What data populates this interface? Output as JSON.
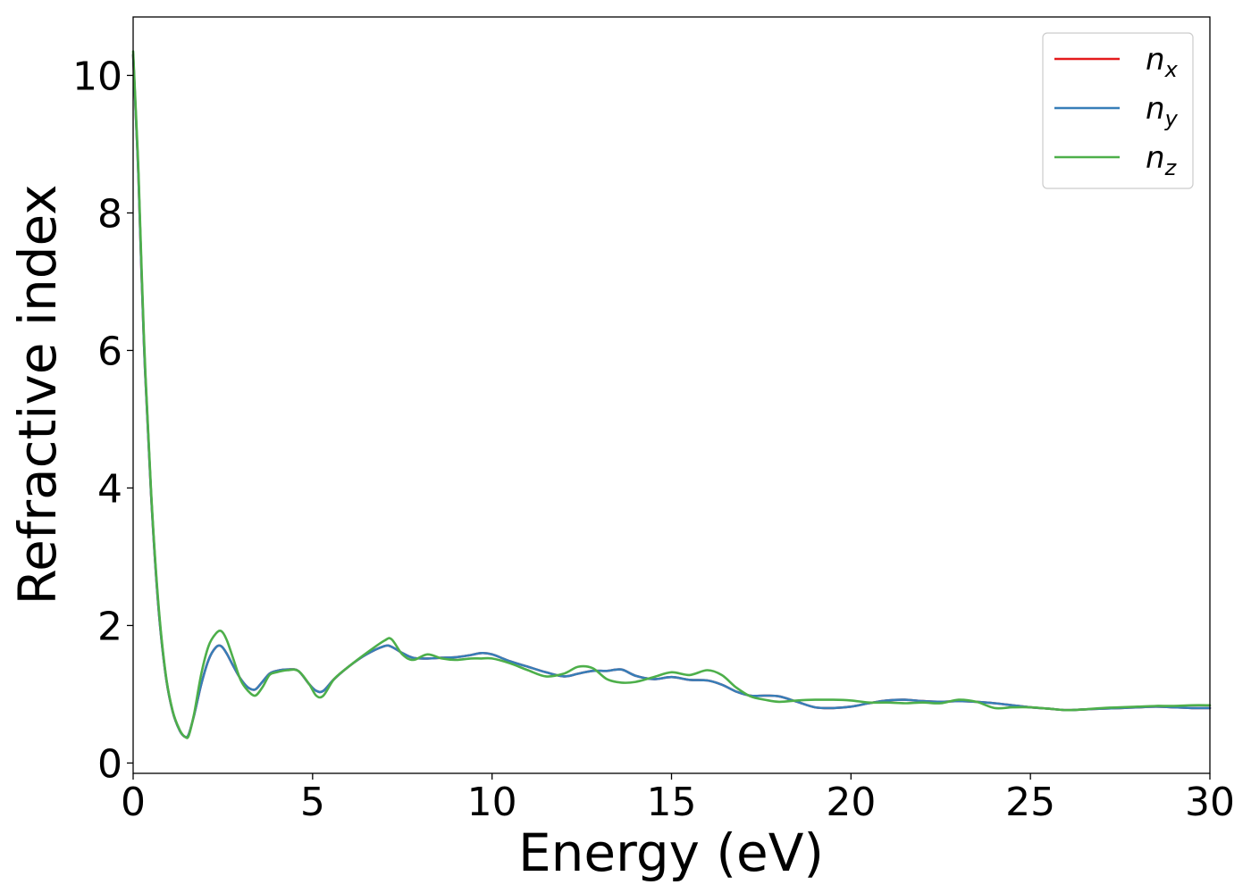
{
  "chart_data": {
    "type": "line",
    "title": "",
    "xlabel": "Energy (eV)",
    "ylabel": "Refractive index",
    "xlim": [
      0,
      30
    ],
    "ylim": [
      -0.15,
      10.85
    ],
    "x_ticks": [
      0,
      5,
      10,
      15,
      20,
      25,
      30
    ],
    "x_tick_labels": [
      "0",
      "5",
      "10",
      "15",
      "20",
      "25",
      "30"
    ],
    "y_ticks": [
      0,
      2,
      4,
      6,
      8,
      10
    ],
    "y_tick_labels": [
      "0",
      "2",
      "4",
      "6",
      "8",
      "10"
    ],
    "grid": false,
    "legend_position": "top-right",
    "series": [
      {
        "name": "n_x",
        "legend_base": "n",
        "legend_sub": "x",
        "color": "#e41a1c",
        "x": [
          0,
          0.15,
          0.3,
          0.5,
          0.7,
          0.9,
          1.1,
          1.3,
          1.45,
          1.55,
          1.7,
          1.9,
          2.1,
          2.3,
          2.45,
          2.6,
          2.8,
          3.0,
          3.2,
          3.4,
          3.6,
          3.8,
          4.0,
          4.3,
          4.6,
          4.9,
          5.1,
          5.3,
          5.6,
          6.0,
          6.5,
          7.0,
          7.2,
          7.5,
          7.8,
          8.2,
          8.6,
          9.0,
          9.4,
          9.7,
          10.0,
          10.5,
          11.0,
          11.5,
          12.0,
          12.4,
          12.8,
          13.2,
          13.6,
          14.0,
          14.5,
          15.0,
          15.5,
          16.0,
          16.4,
          16.8,
          17.2,
          17.6,
          18.0,
          18.5,
          19.0,
          19.5,
          20.0,
          20.5,
          21.0,
          21.5,
          22.0,
          22.5,
          23.0,
          23.5,
          24.0,
          24.5,
          25.0,
          25.5,
          26.0,
          26.5,
          27.0,
          27.5,
          28.0,
          28.5,
          29.0,
          29.5,
          30.0
        ],
        "y": [
          10.3,
          8.5,
          6.1,
          3.9,
          2.3,
          1.3,
          0.75,
          0.47,
          0.38,
          0.42,
          0.7,
          1.15,
          1.5,
          1.68,
          1.7,
          1.6,
          1.4,
          1.22,
          1.1,
          1.07,
          1.18,
          1.3,
          1.34,
          1.36,
          1.34,
          1.15,
          1.05,
          1.05,
          1.22,
          1.4,
          1.58,
          1.7,
          1.69,
          1.6,
          1.53,
          1.52,
          1.53,
          1.54,
          1.57,
          1.6,
          1.58,
          1.48,
          1.4,
          1.32,
          1.26,
          1.3,
          1.34,
          1.34,
          1.36,
          1.27,
          1.22,
          1.25,
          1.21,
          1.2,
          1.14,
          1.04,
          0.98,
          0.98,
          0.97,
          0.89,
          0.81,
          0.8,
          0.82,
          0.87,
          0.91,
          0.92,
          0.9,
          0.89,
          0.9,
          0.89,
          0.87,
          0.84,
          0.81,
          0.79,
          0.77,
          0.78,
          0.79,
          0.8,
          0.81,
          0.82,
          0.81,
          0.8,
          0.8
        ]
      },
      {
        "name": "n_y",
        "legend_base": "n",
        "legend_sub": "y",
        "color": "#377eb8",
        "x": [
          0,
          0.15,
          0.3,
          0.5,
          0.7,
          0.9,
          1.1,
          1.3,
          1.45,
          1.55,
          1.7,
          1.9,
          2.1,
          2.3,
          2.45,
          2.6,
          2.8,
          3.0,
          3.2,
          3.4,
          3.6,
          3.8,
          4.0,
          4.3,
          4.6,
          4.9,
          5.1,
          5.3,
          5.6,
          6.0,
          6.5,
          7.0,
          7.2,
          7.5,
          7.8,
          8.2,
          8.6,
          9.0,
          9.4,
          9.7,
          10.0,
          10.5,
          11.0,
          11.5,
          12.0,
          12.4,
          12.8,
          13.2,
          13.6,
          14.0,
          14.5,
          15.0,
          15.5,
          16.0,
          16.4,
          16.8,
          17.2,
          17.6,
          18.0,
          18.5,
          19.0,
          19.5,
          20.0,
          20.5,
          21.0,
          21.5,
          22.0,
          22.5,
          23.0,
          23.5,
          24.0,
          24.5,
          25.0,
          25.5,
          26.0,
          26.5,
          27.0,
          27.5,
          28.0,
          28.5,
          29.0,
          29.5,
          30.0
        ],
        "y": [
          10.3,
          8.5,
          6.1,
          3.9,
          2.3,
          1.3,
          0.75,
          0.47,
          0.38,
          0.42,
          0.7,
          1.15,
          1.5,
          1.68,
          1.7,
          1.6,
          1.4,
          1.22,
          1.1,
          1.07,
          1.18,
          1.3,
          1.34,
          1.36,
          1.34,
          1.15,
          1.05,
          1.05,
          1.22,
          1.4,
          1.58,
          1.7,
          1.69,
          1.6,
          1.53,
          1.52,
          1.53,
          1.54,
          1.57,
          1.6,
          1.58,
          1.48,
          1.4,
          1.32,
          1.26,
          1.3,
          1.34,
          1.34,
          1.36,
          1.27,
          1.22,
          1.25,
          1.21,
          1.2,
          1.14,
          1.04,
          0.98,
          0.98,
          0.97,
          0.89,
          0.81,
          0.8,
          0.82,
          0.87,
          0.91,
          0.92,
          0.9,
          0.89,
          0.9,
          0.89,
          0.87,
          0.84,
          0.81,
          0.79,
          0.77,
          0.78,
          0.79,
          0.8,
          0.81,
          0.82,
          0.81,
          0.8,
          0.8
        ]
      },
      {
        "name": "n_z",
        "legend_base": "n",
        "legend_sub": "z",
        "color": "#4daf4a",
        "x": [
          0,
          0.15,
          0.3,
          0.5,
          0.7,
          0.9,
          1.1,
          1.3,
          1.45,
          1.55,
          1.7,
          1.9,
          2.1,
          2.3,
          2.45,
          2.6,
          2.8,
          3.0,
          3.2,
          3.4,
          3.6,
          3.8,
          4.0,
          4.3,
          4.6,
          4.9,
          5.1,
          5.3,
          5.6,
          6.0,
          6.5,
          7.0,
          7.2,
          7.5,
          7.8,
          8.2,
          8.6,
          9.0,
          9.4,
          9.7,
          10.0,
          10.5,
          11.0,
          11.5,
          12.0,
          12.4,
          12.8,
          13.2,
          13.6,
          14.0,
          14.5,
          15.0,
          15.5,
          16.0,
          16.4,
          16.8,
          17.2,
          17.6,
          18.0,
          18.5,
          19.0,
          19.5,
          20.0,
          20.5,
          21.0,
          21.5,
          22.0,
          22.5,
          23.0,
          23.5,
          24.0,
          24.5,
          25.0,
          25.5,
          26.0,
          26.5,
          27.0,
          27.5,
          28.0,
          28.5,
          29.0,
          29.5,
          30.0
        ],
        "y": [
          10.35,
          8.6,
          6.2,
          3.95,
          2.35,
          1.32,
          0.76,
          0.48,
          0.38,
          0.4,
          0.72,
          1.3,
          1.7,
          1.88,
          1.92,
          1.8,
          1.5,
          1.2,
          1.05,
          0.98,
          1.1,
          1.28,
          1.32,
          1.35,
          1.34,
          1.15,
          0.98,
          0.98,
          1.22,
          1.4,
          1.6,
          1.78,
          1.8,
          1.58,
          1.5,
          1.58,
          1.52,
          1.5,
          1.52,
          1.52,
          1.52,
          1.45,
          1.35,
          1.26,
          1.3,
          1.4,
          1.38,
          1.22,
          1.17,
          1.18,
          1.25,
          1.32,
          1.28,
          1.35,
          1.28,
          1.1,
          0.97,
          0.92,
          0.89,
          0.91,
          0.92,
          0.92,
          0.91,
          0.88,
          0.88,
          0.87,
          0.88,
          0.87,
          0.92,
          0.89,
          0.8,
          0.81,
          0.81,
          0.79,
          0.77,
          0.78,
          0.8,
          0.81,
          0.82,
          0.83,
          0.83,
          0.84,
          0.84
        ]
      }
    ]
  }
}
